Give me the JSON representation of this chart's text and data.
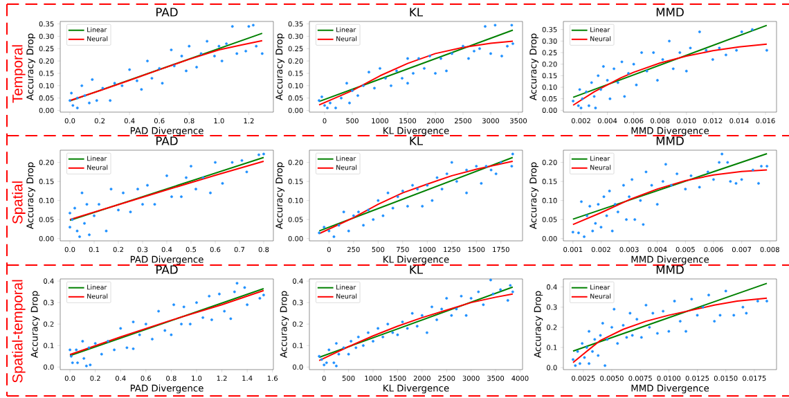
{
  "chart_data": [
    {
      "type": "scatter",
      "title": "PAD",
      "xlabel": "PAD Divergence",
      "ylabel": "Accuracy Drop",
      "annotations": [
        "Temporal"
      ],
      "legend": "top left",
      "xlim": [
        -0.065,
        1.365
      ],
      "ylim": [
        -0.007,
        0.36
      ],
      "xticks": [
        {
          "value": 0,
          "label": "0.0"
        },
        {
          "value": 0.2,
          "label": "0.2"
        },
        {
          "value": 0.4,
          "label": "0.4"
        },
        {
          "value": 0.6,
          "label": "0.6"
        },
        {
          "value": 0.8,
          "label": "0.8"
        },
        {
          "value": 1.0,
          "label": "1.0"
        },
        {
          "value": 1.2,
          "label": "1.2"
        }
      ],
      "yticks": [
        {
          "value": 0,
          "label": "0.00"
        },
        {
          "value": 0.05,
          "label": "0.05"
        },
        {
          "value": 0.1,
          "label": "0.10"
        },
        {
          "value": 0.15,
          "label": "0.15"
        },
        {
          "value": 0.2,
          "label": "0.20"
        },
        {
          "value": 0.25,
          "label": "0.25"
        },
        {
          "value": 0.3,
          "label": "0.30"
        },
        {
          "value": 0.35,
          "label": "0.35"
        }
      ],
      "series": [
        {
          "type": "scatter",
          "marker": "circle",
          "color": "#1e90ff",
          "x": [
            0.0,
            0.01,
            0.02,
            0.05,
            0.05,
            0.08,
            0.1,
            0.13,
            0.15,
            0.18,
            0.22,
            0.27,
            0.3,
            0.35,
            0.4,
            0.45,
            0.48,
            0.52,
            0.55,
            0.6,
            0.62,
            0.68,
            0.7,
            0.75,
            0.78,
            0.8,
            0.85,
            0.88,
            0.92,
            0.97,
            1.0,
            1.02,
            1.05,
            1.09,
            1.12,
            1.18,
            1.2,
            1.23,
            1.25,
            1.29
          ],
          "values": [
            0.04,
            0.07,
            0.02,
            0.01,
            0.05,
            0.1,
            0.06,
            0.03,
            0.125,
            0.04,
            0.09,
            0.04,
            0.11,
            0.1,
            0.165,
            0.12,
            0.085,
            0.2,
            0.13,
            0.17,
            0.11,
            0.245,
            0.18,
            0.22,
            0.16,
            0.26,
            0.175,
            0.23,
            0.28,
            0.22,
            0.26,
            0.2,
            0.27,
            0.34,
            0.23,
            0.24,
            0.34,
            0.345,
            0.26,
            0.23
          ]
        },
        {
          "type": "line",
          "name": "Linear",
          "color": "#008000",
          "x": [
            0,
            1.29
          ],
          "values": [
            0.038,
            0.312
          ]
        },
        {
          "type": "line",
          "name": "Neural",
          "color": "#ff0000",
          "x": [
            0,
            0.2,
            0.4,
            0.6,
            0.8,
            1.0,
            1.15,
            1.29
          ],
          "values": [
            0.04,
            0.08,
            0.122,
            0.165,
            0.207,
            0.245,
            0.265,
            0.282
          ]
        }
      ]
    },
    {
      "type": "scatter",
      "title": "KL",
      "xlabel": "KL Divergence",
      "ylabel": "Accuracy Drop",
      "legend": "top left",
      "xlim": [
        -275,
        3575
      ],
      "ylim": [
        -0.007,
        0.36
      ],
      "xticks": [
        0,
        500,
        1000,
        1500,
        2000,
        2500,
        3000,
        3500
      ],
      "yticks": [
        {
          "value": 0,
          "label": "0.00"
        },
        {
          "value": 0.05,
          "label": "0.05"
        },
        {
          "value": 0.1,
          "label": "0.10"
        },
        {
          "value": 0.15,
          "label": "0.15"
        },
        {
          "value": 0.2,
          "label": "0.20"
        },
        {
          "value": 0.25,
          "label": "0.25"
        },
        {
          "value": 0.3,
          "label": "0.30"
        },
        {
          "value": 0.35,
          "label": "0.35"
        }
      ],
      "series": [
        {
          "type": "scatter",
          "marker": "circle",
          "color": "#1e90ff",
          "x": [
            -100,
            -50,
            0,
            50,
            100,
            200,
            300,
            400,
            450,
            500,
            600,
            700,
            800,
            900,
            1000,
            1100,
            1200,
            1300,
            1400,
            1500,
            1500,
            1600,
            1700,
            1800,
            1900,
            2000,
            2100,
            2200,
            2300,
            2500,
            2600,
            2700,
            2800,
            2900,
            3000,
            3080,
            3200,
            3300,
            3380,
            3400
          ],
          "values": [
            0.04,
            0.055,
            0.02,
            0.01,
            0.03,
            0.01,
            0.05,
            0.11,
            0.03,
            0.08,
            0.06,
            0.1,
            0.155,
            0.09,
            0.17,
            0.13,
            0.1,
            0.16,
            0.13,
            0.21,
            0.11,
            0.15,
            0.21,
            0.17,
            0.22,
            0.15,
            0.21,
            0.16,
            0.23,
            0.26,
            0.21,
            0.24,
            0.25,
            0.34,
            0.23,
            0.345,
            0.22,
            0.26,
            0.345,
            0.27
          ]
        },
        {
          "type": "line",
          "name": "Linear",
          "color": "#008000",
          "x": [
            -100,
            3400
          ],
          "values": [
            0.036,
            0.325
          ]
        },
        {
          "type": "line",
          "name": "Neural",
          "color": "#ff0000",
          "x": [
            -100,
            500,
            1000,
            1500,
            2000,
            2500,
            3000,
            3400
          ],
          "values": [
            0.022,
            0.08,
            0.14,
            0.19,
            0.23,
            0.255,
            0.272,
            0.28
          ]
        }
      ]
    },
    {
      "type": "scatter",
      "title": "MMD",
      "xlabel": "MMD Divergence",
      "ylabel": "Accuracy Drop",
      "legend": "top left",
      "xlim": [
        0.00066,
        0.01684
      ],
      "ylim": [
        -0.008,
        0.385
      ],
      "xticks": [
        {
          "value": 0.002,
          "label": "0.002"
        },
        {
          "value": 0.004,
          "label": "0.004"
        },
        {
          "value": 0.006,
          "label": "0.006"
        },
        {
          "value": 0.008,
          "label": "0.008"
        },
        {
          "value": 0.01,
          "label": "0.010"
        },
        {
          "value": 0.012,
          "label": "0.012"
        },
        {
          "value": 0.014,
          "label": "0.014"
        },
        {
          "value": 0.016,
          "label": "0.016"
        }
      ],
      "yticks": [
        {
          "value": 0,
          "label": "0.00"
        },
        {
          "value": 0.05,
          "label": "0.05"
        },
        {
          "value": 0.1,
          "label": "0.10"
        },
        {
          "value": 0.15,
          "label": "0.15"
        },
        {
          "value": 0.2,
          "label": "0.20"
        },
        {
          "value": 0.25,
          "label": "0.25"
        },
        {
          "value": 0.3,
          "label": "0.30"
        },
        {
          "value": 0.35,
          "label": "0.35"
        }
      ],
      "series": [
        {
          "type": "scatter",
          "marker": "circle",
          "color": "#1e90ff",
          "x": [
            0.0014,
            0.0018,
            0.0019,
            0.002,
            0.0021,
            0.0024,
            0.0026,
            0.0028,
            0.003,
            0.0031,
            0.0033,
            0.0035,
            0.0037,
            0.004,
            0.0042,
            0.0045,
            0.0048,
            0.0051,
            0.0053,
            0.0056,
            0.006,
            0.0062,
            0.0066,
            0.007,
            0.0075,
            0.0078,
            0.0082,
            0.0087,
            0.009,
            0.0095,
            0.01,
            0.0103,
            0.011,
            0.0115,
            0.012,
            0.0125,
            0.013,
            0.0138,
            0.0142,
            0.015,
            0.0161
          ],
          "values": [
            0.04,
            0.02,
            0.09,
            0.01,
            0.05,
            0.08,
            0.02,
            0.12,
            0.06,
            0.01,
            0.15,
            0.09,
            0.19,
            0.13,
            0.05,
            0.18,
            0.12,
            0.21,
            0.06,
            0.16,
            0.2,
            0.11,
            0.25,
            0.17,
            0.25,
            0.13,
            0.22,
            0.3,
            0.18,
            0.25,
            0.17,
            0.27,
            0.34,
            0.26,
            0.22,
            0.27,
            0.24,
            0.26,
            0.34,
            0.35,
            0.26
          ]
        },
        {
          "type": "line",
          "name": "Linear",
          "color": "#008000",
          "x": [
            0.0014,
            0.0161
          ],
          "values": [
            0.056,
            0.368
          ]
        },
        {
          "type": "line",
          "name": "Neural",
          "color": "#ff0000",
          "x": [
            0.0014,
            0.003,
            0.004,
            0.005,
            0.006,
            0.008,
            0.01,
            0.012,
            0.014,
            0.0161
          ],
          "values": [
            0.022,
            0.08,
            0.11,
            0.14,
            0.165,
            0.205,
            0.235,
            0.258,
            0.275,
            0.287
          ]
        }
      ]
    },
    {
      "type": "scatter",
      "title": "PAD",
      "xlabel": "PAD Divergence",
      "ylabel": "Accuracy Drop",
      "annotations": [
        "Spatial"
      ],
      "legend": "top left",
      "xlim": [
        -0.04,
        0.84
      ],
      "ylim": [
        -0.006,
        0.232
      ],
      "xticks": [
        {
          "value": 0,
          "label": "0.0"
        },
        0.1,
        0.2,
        0.3,
        0.4,
        0.5,
        0.6,
        0.7,
        0.8
      ],
      "yticks": [
        {
          "value": 0,
          "label": "0.00"
        },
        {
          "value": 0.05,
          "label": "0.05"
        },
        {
          "value": 0.1,
          "label": "0.10"
        },
        {
          "value": 0.15,
          "label": "0.15"
        },
        {
          "value": 0.2,
          "label": "0.20"
        }
      ],
      "series": [
        {
          "type": "scatter",
          "marker": "circle",
          "color": "#1e90ff",
          "x": [
            0,
            0,
            0.01,
            0.02,
            0.03,
            0.04,
            0.05,
            0.06,
            0.07,
            0.08,
            0.1,
            0.12,
            0.15,
            0.17,
            0.2,
            0.22,
            0.25,
            0.28,
            0.3,
            0.32,
            0.35,
            0.4,
            0.42,
            0.46,
            0.48,
            0.5,
            0.52,
            0.55,
            0.58,
            0.6,
            0.63,
            0.67,
            0.71,
            0.73,
            0.78,
            0.8
          ],
          "values": [
            0.03,
            0.067,
            0.05,
            0.08,
            0.02,
            0.005,
            0.12,
            0.04,
            0.09,
            0.01,
            0.06,
            0.09,
            0.02,
            0.13,
            0.075,
            0.12,
            0.07,
            0.13,
            0.09,
            0.14,
            0.09,
            0.165,
            0.11,
            0.11,
            0.16,
            0.19,
            0.13,
            0.16,
            0.12,
            0.2,
            0.145,
            0.2,
            0.205,
            0.175,
            0.22,
            0.222
          ]
        },
        {
          "type": "line",
          "name": "Linear",
          "color": "#008000",
          "x": [
            0,
            0.8
          ],
          "values": [
            0.048,
            0.213
          ]
        },
        {
          "type": "line",
          "name": "Neural",
          "color": "#ff0000",
          "x": [
            0,
            0.2,
            0.4,
            0.6,
            0.8
          ],
          "values": [
            0.05,
            0.089,
            0.128,
            0.166,
            0.203
          ]
        }
      ]
    },
    {
      "type": "scatter",
      "title": "KL",
      "xlabel": "KL Divergence",
      "ylabel": "Accuracy Drop",
      "legend": "top left",
      "xlim": [
        -200,
        1970
      ],
      "ylim": [
        -0.006,
        0.232
      ],
      "xticks": [
        0,
        250,
        500,
        750,
        1000,
        1250,
        1500,
        1750
      ],
      "yticks": [
        {
          "value": 0,
          "label": "0.00"
        },
        {
          "value": 0.05,
          "label": "0.05"
        },
        {
          "value": 0.1,
          "label": "0.10"
        },
        {
          "value": 0.15,
          "label": "0.15"
        },
        {
          "value": 0.2,
          "label": "0.20"
        }
      ],
      "series": [
        {
          "type": "scatter",
          "marker": "circle",
          "color": "#1e90ff",
          "x": [
            -100,
            -50,
            0,
            50,
            100,
            150,
            200,
            250,
            300,
            350,
            400,
            450,
            500,
            550,
            600,
            650,
            700,
            750,
            800,
            850,
            900,
            950,
            1000,
            1050,
            1100,
            1150,
            1200,
            1250,
            1300,
            1400,
            1400,
            1500,
            1550,
            1600,
            1650,
            1700,
            1750,
            1860,
            1870
          ],
          "values": [
            0.015,
            0.03,
            0.02,
            0.005,
            0.035,
            0.07,
            0.02,
            0.06,
            0.07,
            0.035,
            0.075,
            0.05,
            0.1,
            0.06,
            0.12,
            0.08,
            0.11,
            0.125,
            0.085,
            0.14,
            0.13,
            0.085,
            0.14,
            0.1,
            0.16,
            0.13,
            0.17,
            0.2,
            0.15,
            0.12,
            0.18,
            0.19,
            0.145,
            0.19,
            0.18,
            0.17,
            0.2,
            0.19,
            0.222
          ]
        },
        {
          "type": "line",
          "name": "Linear",
          "color": "#008000",
          "x": [
            -100,
            1870
          ],
          "values": [
            0.02,
            0.213
          ]
        },
        {
          "type": "line",
          "name": "Neural",
          "color": "#ff0000",
          "x": [
            -100,
            250,
            500,
            750,
            1000,
            1250,
            1500,
            1870
          ],
          "values": [
            0.013,
            0.055,
            0.09,
            0.12,
            0.143,
            0.165,
            0.182,
            0.203
          ]
        }
      ]
    },
    {
      "type": "scatter",
      "title": "MMD",
      "xlabel": "MMD Divergence",
      "ylabel": "Accuracy Drop",
      "legend": "top left",
      "xlim": [
        0.00066,
        0.00824
      ],
      "ylim": [
        -0.006,
        0.232
      ],
      "xticks": [
        0.001,
        0.002,
        0.003,
        0.004,
        0.005,
        0.006,
        0.007,
        0.008
      ],
      "yticks": [
        {
          "value": 0,
          "label": "0.00"
        },
        {
          "value": 0.05,
          "label": "0.05"
        },
        {
          "value": 0.1,
          "label": "0.10"
        },
        {
          "value": 0.15,
          "label": "0.15"
        },
        {
          "value": 0.2,
          "label": "0.20"
        }
      ],
      "series": [
        {
          "type": "scatter",
          "marker": "circle",
          "color": "#1e90ff",
          "x": [
            0.001,
            0.0012,
            0.0013,
            0.0014,
            0.0015,
            0.0016,
            0.0017,
            0.0018,
            0.0019,
            0.002,
            0.0021,
            0.0022,
            0.0023,
            0.0024,
            0.0025,
            0.0026,
            0.0028,
            0.0029,
            0.003,
            0.0031,
            0.0032,
            0.0034,
            0.0035,
            0.0036,
            0.0038,
            0.004,
            0.0042,
            0.0043,
            0.0045,
            0.0047,
            0.005,
            0.0052,
            0.0055,
            0.0058,
            0.006,
            0.0062,
            0.0063,
            0.0065,
            0.0066,
            0.0068,
            0.007,
            0.0074,
            0.0076,
            0.0077,
            0.0079
          ],
          "values": [
            0.017,
            0.015,
            0.097,
            0.005,
            0.06,
            0.085,
            0.02,
            0.04,
            0.09,
            0.03,
            0.11,
            0.06,
            0.125,
            0.02,
            0.09,
            0.07,
            0.14,
            0.05,
            0.11,
            0.155,
            0.05,
            0.1,
            0.037,
            0.175,
            0.14,
            0.09,
            0.15,
            0.195,
            0.14,
            0.17,
            0.13,
            0.165,
            0.135,
            0.175,
            0.155,
            0.2,
            0.222,
            0.2,
            0.15,
            0.145,
            0.155,
            0.18,
            0.145,
            0.19,
            0.19
          ]
        },
        {
          "type": "line",
          "name": "Linear",
          "color": "#008000",
          "x": [
            0.001,
            0.0079
          ],
          "values": [
            0.051,
            0.223
          ]
        },
        {
          "type": "line",
          "name": "Neural",
          "color": "#ff0000",
          "x": [
            0.001,
            0.002,
            0.003,
            0.004,
            0.005,
            0.006,
            0.007,
            0.0079
          ],
          "values": [
            0.037,
            0.068,
            0.102,
            0.13,
            0.152,
            0.167,
            0.176,
            0.18
          ]
        }
      ]
    },
    {
      "type": "scatter",
      "title": "PAD",
      "xlabel": "PAD Divergence",
      "ylabel": "Accuracy Drop",
      "annotations": [
        "Spatial-temporal"
      ],
      "legend": "top left",
      "xlim": [
        -0.077,
        1.607
      ],
      "ylim": [
        -0.012,
        0.41
      ],
      "xticks": [
        {
          "value": 0,
          "label": "0.0"
        },
        0.2,
        0.4,
        0.6,
        0.8,
        {
          "value": 1.0,
          "label": "1.0"
        },
        1.2,
        1.4,
        1.6
      ],
      "yticks": [
        {
          "value": 0,
          "label": "0.0"
        },
        0.1,
        0.2,
        0.3,
        0.4
      ],
      "series": [
        {
          "type": "scatter",
          "marker": "circle",
          "color": "#1e90ff",
          "x": [
            0,
            0.01,
            0.02,
            0.05,
            0.06,
            0.1,
            0.11,
            0.13,
            0.15,
            0.16,
            0.2,
            0.25,
            0.3,
            0.35,
            0.4,
            0.45,
            0.5,
            0.5,
            0.55,
            0.6,
            0.65,
            0.7,
            0.75,
            0.8,
            0.82,
            0.88,
            0.9,
            0.95,
            1.0,
            1.05,
            1.1,
            1.12,
            1.18,
            1.22,
            1.27,
            1.3,
            1.32,
            1.38,
            1.4,
            1.5,
            1.53
          ],
          "values": [
            0.08,
            0.05,
            0.02,
            0.08,
            0.02,
            0.12,
            0.04,
            0.005,
            0.09,
            0.01,
            0.11,
            0.06,
            0.12,
            0.08,
            0.18,
            0.09,
            0.085,
            0.21,
            0.15,
            0.2,
            0.13,
            0.26,
            0.17,
            0.15,
            0.29,
            0.2,
            0.28,
            0.2,
            0.3,
            0.23,
            0.33,
            0.22,
            0.34,
            0.26,
            0.225,
            0.35,
            0.39,
            0.37,
            0.29,
            0.32,
            0.335
          ]
        },
        {
          "type": "line",
          "name": "Linear",
          "color": "#008000",
          "x": [
            0,
            1.53
          ],
          "values": [
            0.053,
            0.365
          ]
        },
        {
          "type": "line",
          "name": "Neural",
          "color": "#ff0000",
          "x": [
            0,
            0.4,
            0.8,
            1.2,
            1.53
          ],
          "values": [
            0.058,
            0.14,
            0.218,
            0.29,
            0.356
          ]
        }
      ]
    },
    {
      "type": "scatter",
      "title": "KL",
      "xlabel": "KL Divergence",
      "ylabel": "Accuracy Drop",
      "legend": "top left",
      "xlim": [
        -300,
        4050
      ],
      "ylim": [
        -0.012,
        0.41
      ],
      "xticks": [
        0,
        500,
        1000,
        1500,
        2000,
        2500,
        3000,
        3500,
        4000
      ],
      "yticks": [
        {
          "value": 0,
          "label": "0.0"
        },
        0.1,
        0.2,
        0.3,
        0.4
      ],
      "series": [
        {
          "type": "scatter",
          "marker": "circle",
          "color": "#1e90ff",
          "x": [
            -100,
            -50,
            0,
            50,
            100,
            200,
            250,
            250,
            300,
            400,
            500,
            550,
            650,
            700,
            800,
            900,
            1000,
            1100,
            1200,
            1300,
            1400,
            1500,
            1600,
            1700,
            1800,
            1900,
            2000,
            2100,
            2200,
            2300,
            2400,
            2500,
            2600,
            2700,
            2800,
            2900,
            3000,
            3150,
            3250,
            3400,
            3450,
            3600,
            3750,
            3800,
            3850
          ],
          "values": [
            0.05,
            0.035,
            0.01,
            0.02,
            0.08,
            0.02,
            0.005,
            0.11,
            0.06,
            0.09,
            0.06,
            0.12,
            0.09,
            0.14,
            0.1,
            0.16,
            0.12,
            0.18,
            0.14,
            0.2,
            0.16,
            0.15,
            0.21,
            0.18,
            0.25,
            0.19,
            0.24,
            0.16,
            0.28,
            0.22,
            0.27,
            0.32,
            0.24,
            0.27,
            0.33,
            0.24,
            0.32,
            0.35,
            0.29,
            0.405,
            0.34,
            0.36,
            0.31,
            0.38,
            0.35
          ]
        },
        {
          "type": "line",
          "name": "Linear",
          "color": "#008000",
          "x": [
            -100,
            3850
          ],
          "values": [
            0.045,
            0.372
          ]
        },
        {
          "type": "line",
          "name": "Neural",
          "color": "#ff0000",
          "x": [
            -100,
            500,
            1000,
            1500,
            2000,
            2500,
            3000,
            3500,
            3850
          ],
          "values": [
            0.03,
            0.095,
            0.145,
            0.19,
            0.23,
            0.265,
            0.3,
            0.325,
            0.34
          ]
        }
      ]
    },
    {
      "type": "scatter",
      "title": "MMD",
      "xlabel": "MMD Divergence",
      "ylabel": "Accuracy Drop",
      "legend": "top left",
      "xlim": [
        0.00075,
        0.01945
      ],
      "ylim": [
        -0.01,
        0.44
      ],
      "xticks": [
        0.0025,
        {
          "value": 0.005,
          "label": "0.0050"
        },
        0.0075,
        {
          "value": 0.01,
          "label": "0.0100"
        },
        0.0125,
        {
          "value": 0.015,
          "label": "0.0150"
        },
        0.0175
      ],
      "yticks": [
        {
          "value": 0,
          "label": "0.0"
        },
        0.1,
        0.2,
        0.3,
        0.4
      ],
      "series": [
        {
          "type": "scatter",
          "marker": "circle",
          "color": "#1e90ff",
          "x": [
            0.0016,
            0.0018,
            0.002,
            0.0022,
            0.0024,
            0.0026,
            0.0028,
            0.003,
            0.003,
            0.0033,
            0.0035,
            0.0038,
            0.004,
            0.0042,
            0.0044,
            0.0046,
            0.005,
            0.0052,
            0.0055,
            0.006,
            0.0063,
            0.0066,
            0.0068,
            0.0072,
            0.0076,
            0.008,
            0.0083,
            0.0086,
            0.009,
            0.0095,
            0.01,
            0.0105,
            0.011,
            0.0115,
            0.012,
            0.0125,
            0.013,
            0.0135,
            0.014,
            0.0145,
            0.015,
            0.0157,
            0.0165,
            0.0168,
            0.0178,
            0.0186
          ],
          "values": [
            0.04,
            0.01,
            0.08,
            0.02,
            0.12,
            0.05,
            0.1,
            0.02,
            0.18,
            0.08,
            0.14,
            0.06,
            0.16,
            0.22,
            0.01,
            0.14,
            0.2,
            0.29,
            0.12,
            0.21,
            0.15,
            0.27,
            0.16,
            0.24,
            0.15,
            0.31,
            0.2,
            0.27,
            0.17,
            0.28,
            0.18,
            0.33,
            0.23,
            0.18,
            0.34,
            0.26,
            0.3,
            0.36,
            0.23,
            0.26,
            0.38,
            0.26,
            0.3,
            0.27,
            0.33,
            0.33
          ]
        },
        {
          "type": "line",
          "name": "Linear",
          "color": "#008000",
          "x": [
            0.0016,
            0.0186
          ],
          "values": [
            0.082,
            0.418
          ]
        },
        {
          "type": "line",
          "name": "Neural",
          "color": "#ff0000",
          "x": [
            0.0016,
            0.003,
            0.004,
            0.006,
            0.008,
            0.01,
            0.012,
            0.014,
            0.016,
            0.0186
          ],
          "values": [
            0.025,
            0.09,
            0.135,
            0.19,
            0.23,
            0.26,
            0.285,
            0.31,
            0.33,
            0.345
          ]
        }
      ]
    }
  ]
}
